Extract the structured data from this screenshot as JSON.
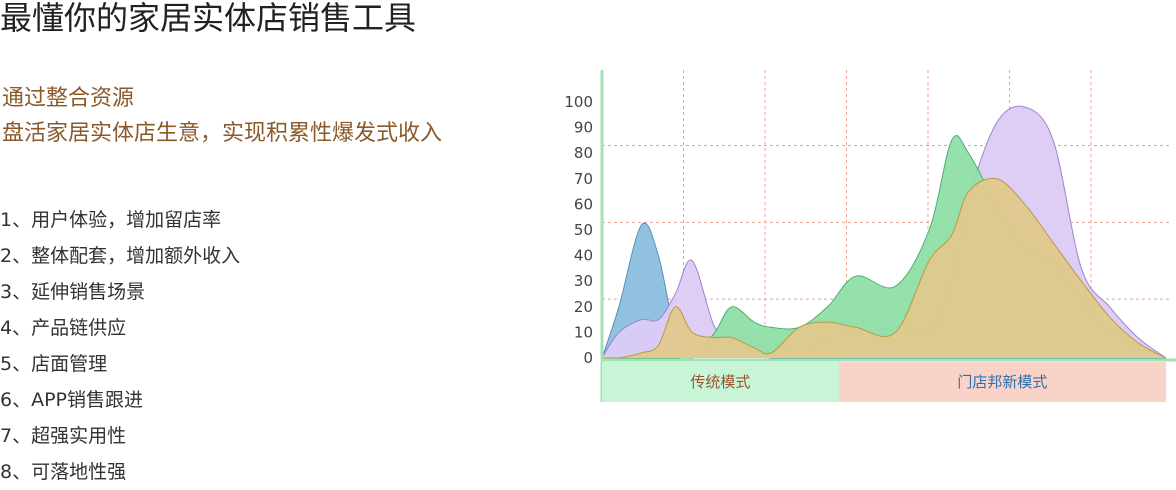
{
  "page": {
    "title": "最懂你的家居实体店销售工具",
    "slogan_line1": "通过整合资源",
    "slogan_line2": "盘活家居实体店生意，实现积累性爆发式收入"
  },
  "features": [
    "1、用户体验，增加留店率",
    "2、整体配套，增加额外收入",
    "3、延伸销售场景",
    "4、产品链供应",
    "5、店面管理",
    "6、APP销售跟进",
    "7、超强实用性",
    "8、可落地性强"
  ],
  "colors": {
    "text_brown": "#8a5a2b",
    "axis_green": "#9fe3b3",
    "grid_red": "#e8a39a",
    "band_traditional": "#c7f5d6",
    "band_new": "#f9d3c8",
    "band_traditional_text": "#a0522d",
    "band_new_text": "#2e6fae"
  },
  "chart_data": {
    "type": "area",
    "ylim": [
      0,
      100
    ],
    "y_ticks": [
      "0",
      "10",
      "20",
      "30",
      "40",
      "50",
      "60",
      "70",
      "80",
      "90",
      "100"
    ],
    "bands": [
      {
        "label": "传统模式",
        "color": "#c7f5d6",
        "text_color": "#a0522d",
        "x_range": [
          0,
          0.42
        ]
      },
      {
        "label": "门店邦新模式",
        "color": "#f9d3c8",
        "text_color": "#2e6fae",
        "x_range": [
          0.42,
          1.0
        ]
      }
    ],
    "x": [
      0,
      0.03,
      0.07,
      0.1,
      0.13,
      0.16,
      0.2,
      0.23,
      0.27,
      0.3,
      0.35,
      0.4,
      0.45,
      0.52,
      0.58,
      0.62,
      0.65,
      0.7,
      0.75,
      0.8,
      0.85,
      0.9,
      0.95,
      1.0
    ],
    "series": [
      {
        "color": "#8bbfdd",
        "stroke": "#5a8fb8",
        "values": [
          0,
          20,
          52,
          40,
          10,
          3,
          2,
          2,
          1,
          0,
          0,
          0,
          0,
          0,
          0,
          0,
          0,
          0,
          0,
          0,
          0,
          0,
          0,
          0
        ]
      },
      {
        "color": "#dccbf5",
        "stroke": "#9b84cf",
        "values": [
          0,
          10,
          15,
          15,
          25,
          38,
          12,
          12,
          10,
          6,
          3,
          8,
          10,
          12,
          10,
          30,
          62,
          92,
          98,
          85,
          35,
          20,
          8,
          0
        ]
      },
      {
        "color": "#8fdfa8",
        "stroke": "#4fae6f",
        "values": [
          0,
          0,
          0,
          0,
          0,
          0,
          10,
          20,
          14,
          12,
          12,
          20,
          32,
          28,
          50,
          85,
          80,
          60,
          45,
          38,
          24,
          12,
          5,
          0
        ]
      },
      {
        "color": "#e0c88c",
        "stroke": "#b99a44",
        "values": [
          0,
          0,
          2,
          5,
          20,
          10,
          8,
          8,
          4,
          2,
          12,
          14,
          12,
          10,
          38,
          48,
          65,
          70,
          60,
          45,
          30,
          16,
          6,
          0
        ]
      }
    ]
  }
}
